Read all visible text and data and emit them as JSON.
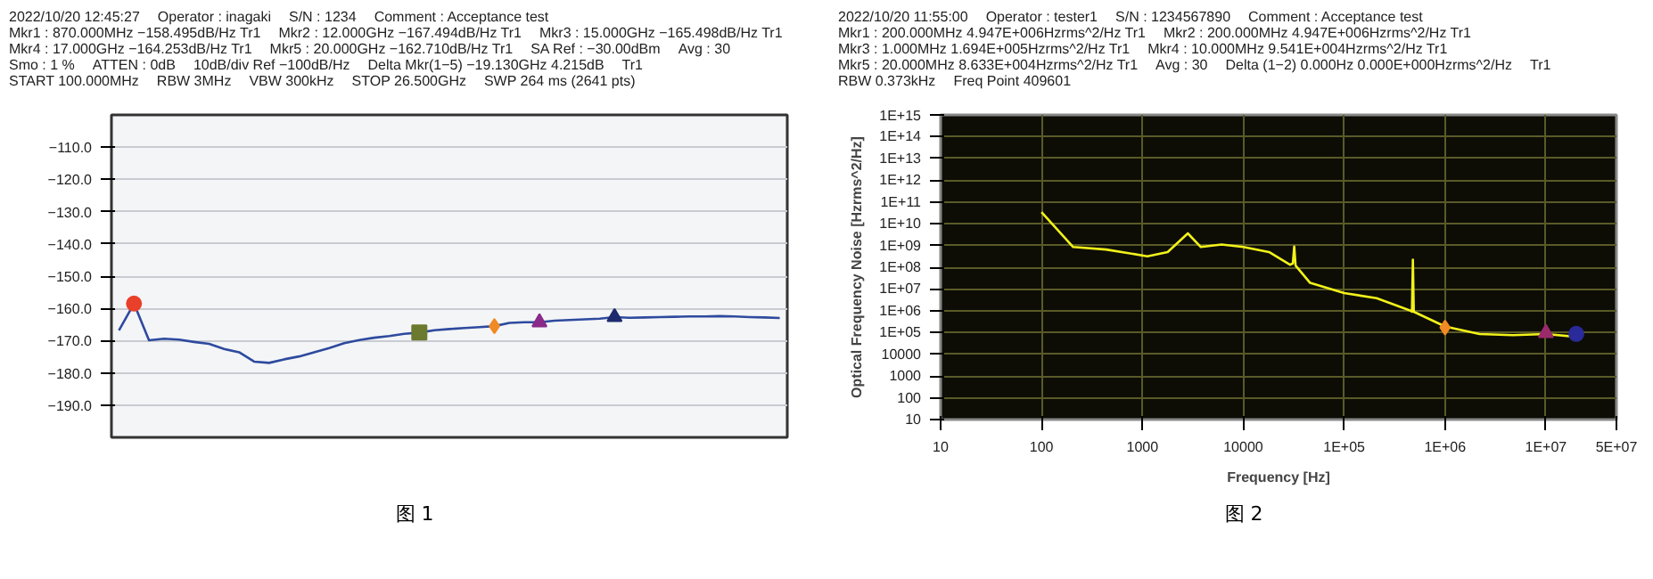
{
  "chart_data": [
    {
      "type": "line",
      "grid": "y",
      "tick_labels": "y",
      "marker": "none",
      "categories": [
        null,
        null,
        null,
        null,
        null,
        null,
        null,
        null,
        null,
        null,
        null,
        null,
        null,
        null,
        null,
        null,
        null,
        null,
        null,
        null,
        null,
        null,
        null,
        null,
        null,
        null,
        null,
        null,
        null,
        null,
        null,
        null,
        null,
        null,
        null,
        null,
        null,
        null,
        null,
        null,
        null,
        null,
        null,
        null,
        null
      ],
      "ylim": [
        -200,
        -100
      ],
      "yticks": [
        {
          "value": -110,
          "label": "−110.0"
        },
        {
          "value": -120,
          "label": "−120.0"
        },
        {
          "value": -130,
          "label": "−130.0"
        },
        {
          "value": -140,
          "label": "−140.0"
        },
        {
          "value": -150,
          "label": "−150.0"
        },
        {
          "value": -160,
          "label": "−160.0"
        },
        {
          "value": -170,
          "label": "−170.0"
        },
        {
          "value": -180,
          "label": "−180.0"
        },
        {
          "value": -190,
          "label": "−190.0"
        }
      ],
      "series": [
        {
          "color": "#2e4a9e",
          "values": [
            -166.8,
            -158.5,
            -169.9,
            -169.4,
            -169.7,
            -170.4,
            -171,
            -172.6,
            -173.6,
            -176.5,
            -176.9,
            -175.8,
            -174.9,
            -173.6,
            -172.3,
            -170.8,
            -169.8,
            -169.1,
            -168.6,
            -167.9,
            -167.5,
            -166.8,
            -166.4,
            -166.1,
            -165.8,
            -165.5,
            -164.5,
            -164.3,
            -164.3,
            -163.8,
            -163.6,
            -163.4,
            -163.2,
            -162.7,
            -162.9,
            -162.8,
            -162.7,
            -162.6,
            -162.5,
            -162.5,
            -162.4,
            -162.5,
            -162.7,
            -162.8,
            -163
          ]
        },
        {
          "type": "scatter",
          "marker": "circle",
          "color": "#e8402a",
          "values": [
            null,
            -158.5,
            null,
            null,
            null,
            null,
            null,
            null,
            null,
            null,
            null,
            null,
            null,
            null,
            null,
            null,
            null,
            null,
            null,
            null,
            null,
            null,
            null,
            null,
            null,
            null,
            null,
            null,
            null,
            null,
            null,
            null,
            null,
            null,
            null,
            null,
            null,
            null,
            null,
            null,
            null,
            null,
            null,
            null,
            null
          ]
        },
        {
          "type": "scatter",
          "marker": "square",
          "color": "#6b7a2e",
          "values": [
            null,
            null,
            null,
            null,
            null,
            null,
            null,
            null,
            null,
            null,
            null,
            null,
            null,
            null,
            null,
            null,
            null,
            null,
            null,
            null,
            -167.5,
            null,
            null,
            null,
            null,
            null,
            null,
            null,
            null,
            null,
            null,
            null,
            null,
            null,
            null,
            null,
            null,
            null,
            null,
            null,
            null,
            null,
            null,
            null,
            null
          ]
        },
        {
          "type": "scatter",
          "marker": "diamond",
          "color": "#f08a24",
          "values": [
            null,
            null,
            null,
            null,
            null,
            null,
            null,
            null,
            null,
            null,
            null,
            null,
            null,
            null,
            null,
            null,
            null,
            null,
            null,
            null,
            null,
            null,
            null,
            null,
            null,
            -165.5,
            null,
            null,
            null,
            null,
            null,
            null,
            null,
            null,
            null,
            null,
            null,
            null,
            null,
            null,
            null,
            null,
            null,
            null,
            null
          ]
        },
        {
          "type": "scatter",
          "marker": "triangle",
          "color": "#8a2a8a",
          "values": [
            null,
            null,
            null,
            null,
            null,
            null,
            null,
            null,
            null,
            null,
            null,
            null,
            null,
            null,
            null,
            null,
            null,
            null,
            null,
            null,
            null,
            null,
            null,
            null,
            null,
            null,
            null,
            null,
            -164.3,
            null,
            null,
            null,
            null,
            null,
            null,
            null,
            null,
            null,
            null,
            null,
            null,
            null,
            null,
            null,
            null
          ]
        },
        {
          "type": "scatter",
          "marker": "triangle",
          "color": "#1e2a6e",
          "values": [
            null,
            null,
            null,
            null,
            null,
            null,
            null,
            null,
            null,
            null,
            null,
            null,
            null,
            null,
            null,
            null,
            null,
            null,
            null,
            null,
            null,
            null,
            null,
            null,
            null,
            null,
            null,
            null,
            null,
            null,
            null,
            null,
            null,
            -162.7,
            null,
            null,
            null,
            null,
            null,
            null,
            null,
            null,
            null,
            null,
            null
          ]
        }
      ],
      "annotations": [
        "2022/10/20 12:45:27",
        "Operator : inagaki",
        "S/N : 1234",
        "Comment : Acceptance test",
        "Mkr1 : 870.000MHz −158.495dB/Hz Tr1",
        "Mkr2 : 12.000GHz −167.494dB/Hz Tr1",
        "Mkr3 : 15.000GHz −165.498dB/Hz Tr1",
        "Mkr4 : 17.000GHz −164.253dB/Hz Tr1",
        "Mkr5 : 20.000GHz −162.710dB/Hz Tr1",
        "SA Ref : −30.00dBm",
        "Avg : 30",
        "Smo : 1 %",
        "ATTEN : 0dB",
        "10dB/div Ref −100dB/Hz",
        "Delta Mkr(1−5) −19.130GHz 4.215dB",
        "Tr1",
        "START 100.000MHz",
        "RBW 3MHz",
        "VBW 300kHz",
        "STOP 26.500GHz",
        "SWP 264 ms (2641 pts)",
        "图 1"
      ]
    },
    {
      "type": "line",
      "grid": true,
      "log": "xy",
      "marker": "none",
      "xlabel": "Frequency [Hz]",
      "ylabel": "Optical Frequency Noise [Hzrms^2/Hz]",
      "xlim": [
        10,
        50000000
      ],
      "ylim": [
        10,
        1000000000000000
      ],
      "xticks": [
        10,
        100,
        1000,
        10000,
        {
          "value": 100000,
          "label": "1E+05"
        },
        {
          "value": 1000000,
          "label": "1E+06"
        },
        {
          "value": 10000000,
          "label": "1E+07"
        },
        {
          "value": 50000000,
          "label": "5E+07"
        }
      ],
      "yticks": [
        10,
        100,
        1000,
        10000,
        {
          "value": 100000,
          "label": "1E+05"
        },
        {
          "value": 1000000,
          "label": "1E+06"
        },
        {
          "value": 10000000,
          "label": "1E+07"
        },
        {
          "value": 100000000,
          "label": "1E+08"
        },
        {
          "value": 1000000000,
          "label": "1E+09"
        },
        {
          "value": 10000000000,
          "label": "1E+10"
        },
        {
          "value": 100000000000,
          "label": "1E+11"
        },
        {
          "value": 1000000000000,
          "label": "1E+12"
        },
        {
          "value": 10000000000000,
          "label": "1E+13"
        },
        {
          "value": 100000000000000,
          "label": "1E+14"
        },
        {
          "value": 1000000000000000,
          "label": "1E+15"
        }
      ],
      "series": [
        {
          "color": "#f2f21a",
          "x": [
            100,
            206,
            437,
            1120,
            1780,
            2820,
            3800,
            6100,
            10000,
            18000,
            29000,
            31000,
            32000,
            33000,
            46000,
            100000,
            210000,
            460000,
            470000,
            480000,
            490000,
            1000000,
            2200000,
            4700000,
            10000000,
            19000000
          ],
          "values": [
            34000000000,
            850000000,
            650000000,
            320000000,
            500000000,
            3600000000,
            850000000,
            1100000000,
            850000000,
            500000000,
            130000000,
            150000000,
            900000000,
            120000000,
            19000000,
            6500000,
            3800000,
            980000,
            900000,
            220000000,
            900000,
            190000,
            85000,
            76000,
            85000,
            65000
          ]
        },
        {
          "type": "scatter",
          "marker": "diamond",
          "color": "#f08a24",
          "x": [
            1000000
          ],
          "values": [
            169400
          ]
        },
        {
          "type": "scatter",
          "marker": "triangle",
          "color": "#9a2a6a",
          "x": [
            10000000
          ],
          "values": [
            95410
          ]
        },
        {
          "type": "scatter",
          "marker": "circle",
          "color": "#2a2a9a",
          "x": [
            20000000
          ],
          "values": [
            86330
          ]
        }
      ],
      "annotations": [
        "2022/10/20 11:55:00",
        "Operator : tester1",
        "S/N : 1234567890",
        "Comment : Acceptance test",
        "Mkr1 : 200.000MHz 4.947E+006Hzrms^2/Hz Tr1",
        "Mkr2 : 200.000MHz 4.947E+006Hzrms^2/Hz Tr1",
        "Mkr3 : 1.000MHz 1.694E+005Hzrms^2/Hz Tr1",
        "Mkr4 : 10.000MHz 9.541E+004Hzrms^2/Hz Tr1",
        "Mkr5 : 20.000MHz 8.633E+004Hzrms^2/Hz Tr1",
        "Avg : 30",
        "Delta (1−2) 0.000Hz 0.000E+000Hzrms^2/Hz",
        "Tr1",
        "RBW 0.373kHz",
        "Freq Point 409601",
        "图 2"
      ]
    }
  ]
}
